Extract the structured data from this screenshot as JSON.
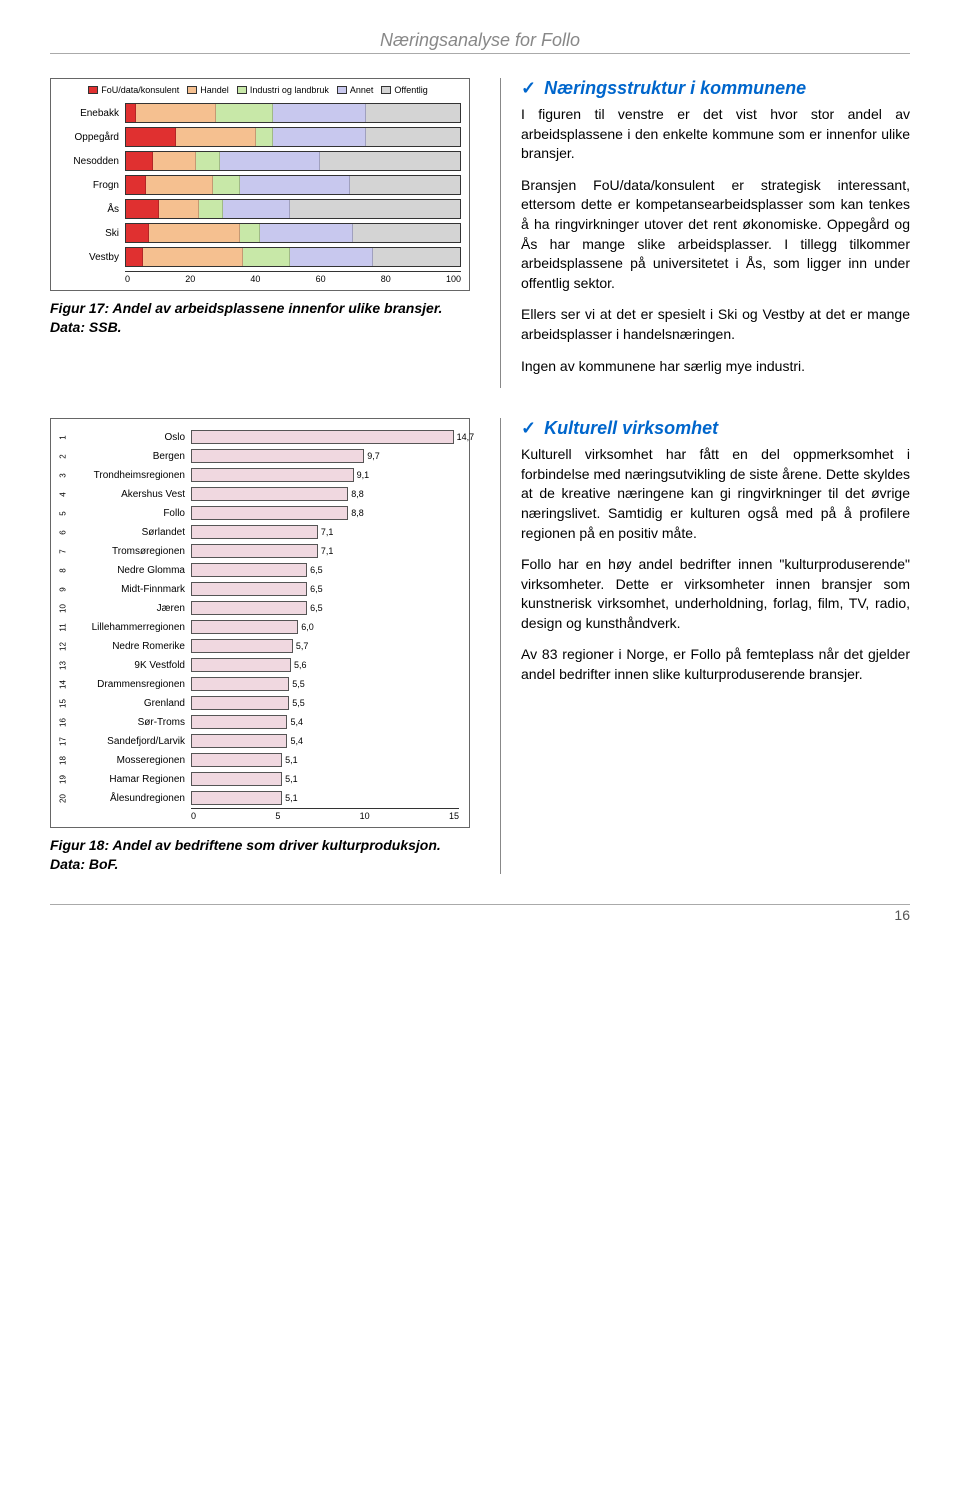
{
  "page": {
    "header": "Næringsanalyse for Follo",
    "page_number": "16"
  },
  "chart1": {
    "type": "stacked-bar-horizontal",
    "legend": [
      {
        "label": "FoU/data/konsulent",
        "color": "#e03030"
      },
      {
        "label": "Handel",
        "color": "#f5c090"
      },
      {
        "label": "Industri og landbruk",
        "color": "#c8e8a8"
      },
      {
        "label": "Annet",
        "color": "#c8c8ee"
      },
      {
        "label": "Offentlig",
        "color": "#d4d4d4"
      }
    ],
    "rows": [
      {
        "label": "Enebakk",
        "segs": [
          3,
          24,
          17,
          28,
          28
        ]
      },
      {
        "label": "Oppegård",
        "segs": [
          15,
          24,
          5,
          28,
          28
        ]
      },
      {
        "label": "Nesodden",
        "segs": [
          8,
          13,
          7,
          30,
          42
        ]
      },
      {
        "label": "Frogn",
        "segs": [
          6,
          20,
          8,
          33,
          33
        ]
      },
      {
        "label": "Ås",
        "segs": [
          10,
          12,
          7,
          20,
          51
        ]
      },
      {
        "label": "Ski",
        "segs": [
          7,
          27,
          6,
          28,
          32
        ]
      },
      {
        "label": "Vestby",
        "segs": [
          5,
          30,
          14,
          25,
          26
        ]
      }
    ],
    "xticks": [
      "0",
      "20",
      "40",
      "60",
      "80",
      "100"
    ],
    "caption": "Figur 17: Andel av arbeidsplassene innenfor ulike bransjer. Data: SSB."
  },
  "text1": {
    "heading": "Næringsstruktur i kommunene",
    "paras": [
      "I figuren til venstre er det vist hvor stor andel av arbeidsplassene i den enkelte kommune som er innenfor ulike bransjer.",
      "Bransjen FoU/data/konsulent er strategisk interessant, ettersom dette er kompetansearbeidsplasser som kan tenkes å ha ringvirkninger utover det rent økonomiske. Oppegård og Ås har mange slike arbeidsplasser. I tillegg tilkommer arbeidsplassene på universitetet i Ås, som ligger inn under offentlig sektor.",
      "Ellers ser vi at det er spesielt i Ski og Vestby at det er mange arbeidsplasser i handelsnæringen.",
      "Ingen av kommunene har særlig mye industri."
    ]
  },
  "chart2": {
    "type": "bar-horizontal",
    "xmax": 15,
    "xticks": [
      "0",
      "5",
      "10",
      "15"
    ],
    "fill": "#f0d8e0",
    "highlight_fill": "#f0d8e0",
    "rows": [
      {
        "rank": "1",
        "label": "Oslo",
        "value": 14.7,
        "disp": "14,7"
      },
      {
        "rank": "2",
        "label": "Bergen",
        "value": 9.7,
        "disp": "9,7"
      },
      {
        "rank": "3",
        "label": "Trondheimsregionen",
        "value": 9.1,
        "disp": "9,1"
      },
      {
        "rank": "4",
        "label": "Akershus Vest",
        "value": 8.8,
        "disp": "8,8"
      },
      {
        "rank": "5",
        "label": "Follo",
        "value": 8.8,
        "disp": "8,8"
      },
      {
        "rank": "6",
        "label": "Sørlandet",
        "value": 7.1,
        "disp": "7,1"
      },
      {
        "rank": "7",
        "label": "Tromsøregionen",
        "value": 7.1,
        "disp": "7,1"
      },
      {
        "rank": "8",
        "label": "Nedre Glomma",
        "value": 6.5,
        "disp": "6,5"
      },
      {
        "rank": "9",
        "label": "Midt-Finnmark",
        "value": 6.5,
        "disp": "6,5"
      },
      {
        "rank": "10",
        "label": "Jæren",
        "value": 6.5,
        "disp": "6,5"
      },
      {
        "rank": "11",
        "label": "Lillehammerregionen",
        "value": 6.0,
        "disp": "6,0"
      },
      {
        "rank": "12",
        "label": "Nedre Romerike",
        "value": 5.7,
        "disp": "5,7"
      },
      {
        "rank": "13",
        "label": "9K Vestfold",
        "value": 5.6,
        "disp": "5,6"
      },
      {
        "rank": "14",
        "label": "Drammensregionen",
        "value": 5.5,
        "disp": "5,5"
      },
      {
        "rank": "15",
        "label": "Grenland",
        "value": 5.5,
        "disp": "5,5"
      },
      {
        "rank": "16",
        "label": "Sør-Troms",
        "value": 5.4,
        "disp": "5,4"
      },
      {
        "rank": "17",
        "label": "Sandefjord/Larvik",
        "value": 5.4,
        "disp": "5,4"
      },
      {
        "rank": "18",
        "label": "Mosseregionen",
        "value": 5.1,
        "disp": "5,1"
      },
      {
        "rank": "19",
        "label": "Hamar Regionen",
        "value": 5.1,
        "disp": "5,1"
      },
      {
        "rank": "20",
        "label": "Ålesundregionen",
        "value": 5.1,
        "disp": "5,1"
      }
    ],
    "caption": "Figur 18: Andel av bedriftene som driver kulturproduksjon. Data: BoF."
  },
  "text2": {
    "heading": "Kulturell virksomhet",
    "paras": [
      "Kulturell virksomhet har fått en del oppmerksomhet i forbindelse med næringsutvikling de siste årene. Dette skyldes at de kreative næringene kan gi ringvirkninger til det øvrige næringslivet. Samtidig er kulturen også med på å profilere regionen på en positiv måte.",
      "Follo har en høy andel bedrifter innen \"kulturproduserende\" virksomheter. Dette er virksomheter innen bransjer som kunstnerisk virksomhet, underholdning, forlag, film, TV, radio, design og kunsthåndverk.",
      "Av 83 regioner i Norge, er Follo på femteplass når det gjelder andel bedrifter innen slike kulturproduserende bransjer."
    ]
  }
}
